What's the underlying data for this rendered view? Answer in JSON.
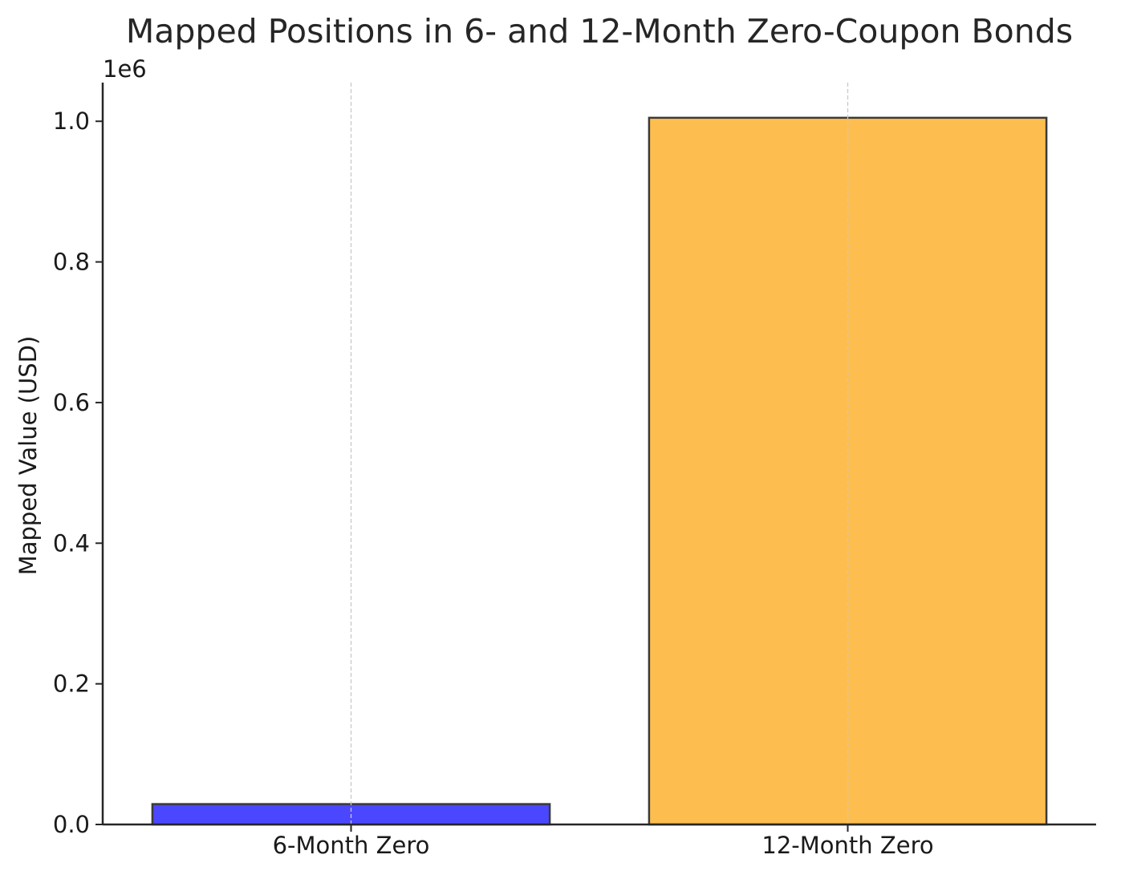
{
  "chart_data": {
    "type": "bar",
    "title": "Mapped Positions in 6- and 12-Month Zero-Coupon Bonds",
    "xlabel": "",
    "ylabel": "Mapped Value (USD)",
    "offset_label": "1e6",
    "categories": [
      "6-Month Zero",
      "12-Month Zero"
    ],
    "values": [
      29000,
      1005000
    ],
    "colors": [
      "#4b47ff",
      "#fdbe4f"
    ],
    "edge_color": "#3a3a3a",
    "ylim": [
      0,
      1055000
    ],
    "yticks": [
      0,
      200000,
      400000,
      600000,
      800000,
      1000000
    ],
    "ytick_labels": [
      "0.0",
      "0.2",
      "0.4",
      "0.6",
      "0.8",
      "1.0"
    ],
    "grid": "vertical dashed at categories",
    "legend": "none"
  }
}
